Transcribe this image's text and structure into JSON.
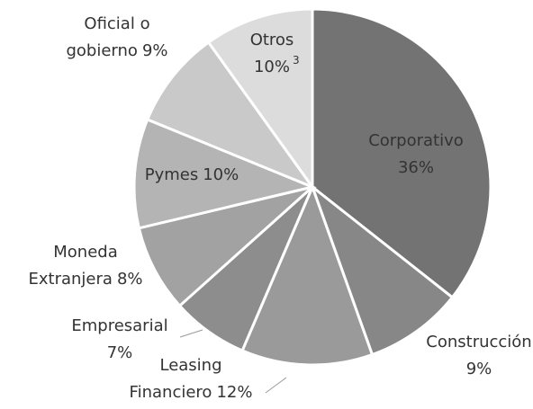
{
  "chart_data": {
    "type": "pie",
    "categories": [
      "Corporativo",
      "Construcción",
      "Leasing Financiero",
      "Empresarial",
      "Moneda Extranjera",
      "Pymes",
      "Oficial o gobierno",
      "Otros"
    ],
    "values": [
      36,
      9,
      12,
      7,
      8,
      10,
      9,
      10
    ],
    "value_labels": [
      "36%",
      "9%",
      "12%",
      "7%",
      "8%",
      "10%",
      "9%",
      "10%"
    ],
    "colors": [
      "#737373",
      "#878787",
      "#9a9a9a",
      "#8d8d8d",
      "#a2a2a2",
      "#b4b4b4",
      "#c9c9c9",
      "#dcdcdc"
    ],
    "footnote": "3"
  }
}
